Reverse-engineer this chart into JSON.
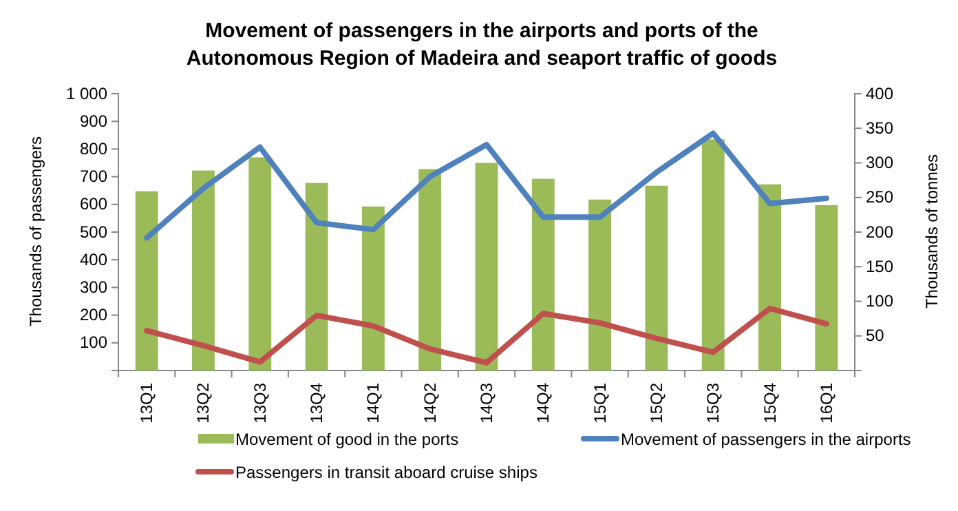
{
  "chart_data": {
    "type": "bar",
    "title": "Movement of passengers in the airports and ports of the Autonomous Region of Madeira and seaport traffic of goods",
    "ylabel": "Thousands of passengers",
    "y2label": "Thousands of tonnes",
    "categories": [
      "13Q1",
      "13Q2",
      "13Q3",
      "13Q4",
      "14Q1",
      "14Q2",
      "14Q3",
      "14Q4",
      "15Q1",
      "15Q2",
      "15Q3",
      "15Q4",
      "16Q1"
    ],
    "series": [
      {
        "name": "Movement of good in the ports",
        "axis": "y2",
        "color": "#9bbb59",
        "values": [
          259,
          289,
          308,
          271,
          237,
          291,
          300,
          277,
          247,
          267,
          334,
          269,
          239
        ]
      },
      {
        "name": "Movement of passengers in the airports",
        "type": "line",
        "color": "#4f81bd",
        "values": [
          479,
          658,
          807,
          534,
          509,
          700,
          816,
          554,
          554,
          716,
          857,
          603,
          622
        ]
      },
      {
        "name": "Passengers in transit aboard cruise ships",
        "type": "line",
        "color": "#c0504d",
        "values": [
          144,
          90,
          31,
          199,
          161,
          78,
          28,
          206,
          172,
          116,
          66,
          224,
          169
        ]
      }
    ],
    "ylim": [
      0,
      1000
    ],
    "yticks": [
      {
        "value": 0,
        "label": null
      },
      100,
      200,
      300,
      400,
      500,
      600,
      700,
      800,
      900,
      {
        "value": 1000,
        "label": "1 000"
      }
    ],
    "y2lim": [
      0,
      400
    ],
    "y2ticks": [
      {
        "value": 0,
        "label": null
      },
      50,
      100,
      150,
      200,
      250,
      300,
      350,
      400
    ],
    "grid": false,
    "legend": "bottom",
    "marker": "none",
    "line_style": "solid"
  }
}
